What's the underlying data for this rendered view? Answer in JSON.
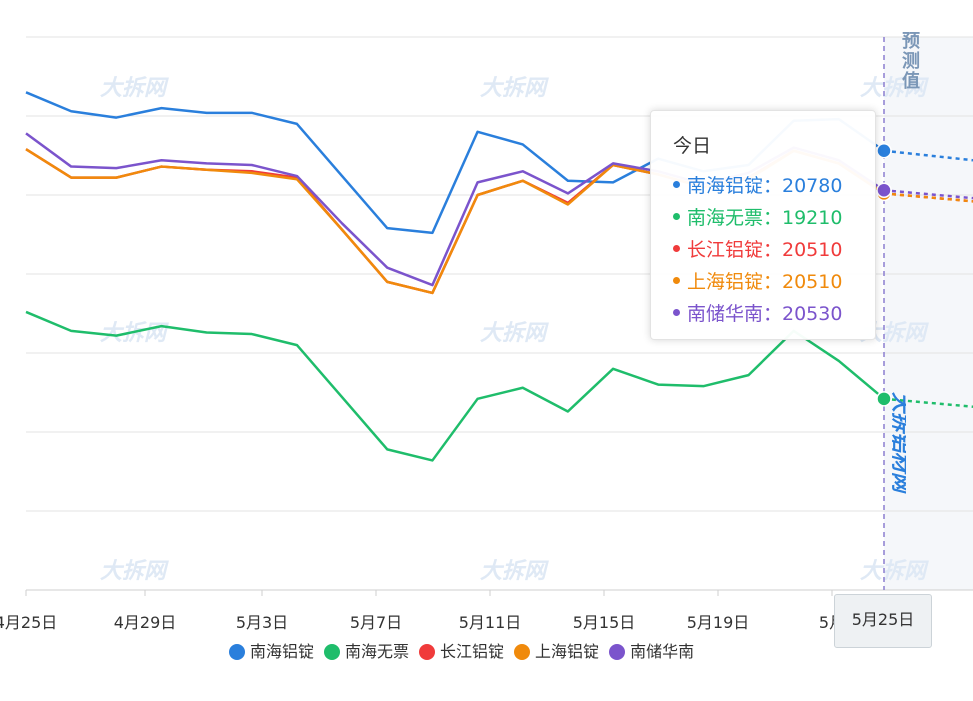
{
  "chart_data": {
    "type": "line",
    "x_ticks": [
      "4月25日",
      "4月29日",
      "5月3日",
      "5月7日",
      "5月11日",
      "5月15日",
      "5月19日",
      "5月",
      "5月25日"
    ],
    "x_axis_pointer_label": "5月25日",
    "forecast_label": "预测值",
    "y_range": [
      18000,
      21500
    ],
    "grid": true,
    "legend_position": "bottom",
    "series": [
      {
        "name": "南海铝锭",
        "color": "#2a7fdc",
        "values": [
          21150,
          21030,
          20990,
          21050,
          21020,
          21020,
          20950,
          20620,
          20290,
          20260,
          20900,
          20820,
          20590,
          20580,
          20730,
          20650,
          20690,
          20970,
          20980,
          20780
        ],
        "forecast": [
          20780,
          20720
        ]
      },
      {
        "name": "南海无票",
        "color": "#1fbd6b",
        "values": [
          19760,
          19640,
          19610,
          19670,
          19630,
          19620,
          19550,
          19220,
          18890,
          18820,
          19210,
          19280,
          19130,
          19400,
          19300,
          19290,
          19360,
          19640,
          19450,
          19210
        ],
        "forecast": [
          19210,
          19160
        ]
      },
      {
        "name": "长江铝锭",
        "color": "#f03b3b",
        "values": [
          20790,
          20610,
          20610,
          20680,
          20660,
          20650,
          20610,
          20280,
          19950,
          19880,
          20500,
          20590,
          20450,
          20690,
          20630,
          20550,
          20610,
          20780,
          20700,
          20510
        ],
        "forecast": [
          20510,
          20460
        ]
      },
      {
        "name": "上海铝锭",
        "color": "#f08a0c",
        "values": [
          20790,
          20610,
          20610,
          20680,
          20660,
          20640,
          20600,
          20280,
          19950,
          19880,
          20500,
          20590,
          20440,
          20690,
          20630,
          20550,
          20600,
          20780,
          20700,
          20510
        ],
        "forecast": [
          20510,
          20460
        ]
      },
      {
        "name": "南储华南",
        "color": "#7b54cc",
        "values": [
          20890,
          20680,
          20670,
          20720,
          20700,
          20690,
          20620,
          20320,
          20040,
          19930,
          20580,
          20650,
          20510,
          20700,
          20650,
          20570,
          20640,
          20800,
          20720,
          20530
        ],
        "forecast": [
          20530,
          20480
        ]
      }
    ],
    "tooltip": {
      "title": "今日",
      "rows": [
        {
          "name": "南海铝锭",
          "value": "20780",
          "color": "#2a7fdc"
        },
        {
          "name": "南海无票",
          "value": "19210",
          "color": "#1fbd6b"
        },
        {
          "name": "长江铝锭",
          "value": "20510",
          "color": "#f03b3b"
        },
        {
          "name": "上海铝锭",
          "value": "20510",
          "color": "#f08a0c"
        },
        {
          "name": "南储华南",
          "value": "20530",
          "color": "#7b54cc"
        }
      ]
    },
    "watermark": "大拆网",
    "vertical_mark": "大拆铝材网"
  }
}
